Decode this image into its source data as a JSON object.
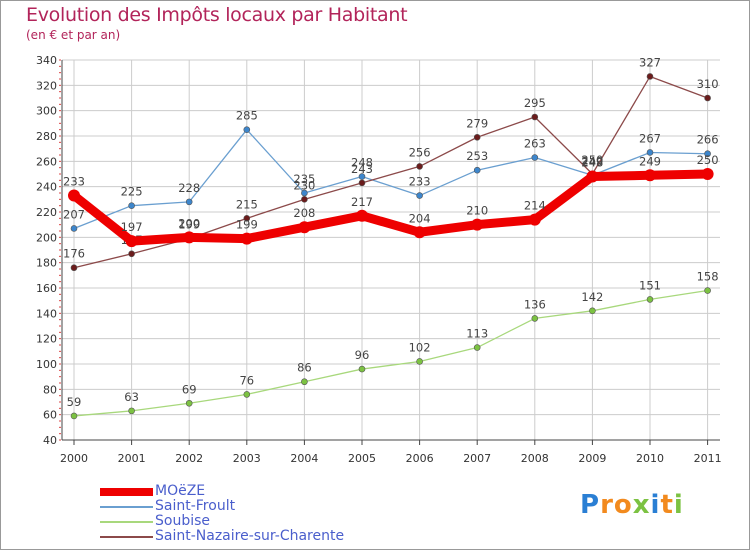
{
  "header": {
    "title": "Evolution des Impôts locaux par Habitant",
    "subtitle": "(en € et par an)"
  },
  "colors": {
    "title": "#b2245a",
    "grid": "#cccccc",
    "axis": "#444444",
    "tick_text": "#333333",
    "legend_text": "#4a5ecc",
    "logo_blue": "#2a7fd4",
    "logo_orange": "#f28a1e",
    "logo_green": "#7cc242"
  },
  "logo": {
    "letters": [
      "P",
      "r",
      "o",
      "x",
      "i",
      "t",
      "i"
    ],
    "letter_colors": [
      "#2a7fd4",
      "#f28a1e",
      "#f28a1e",
      "#7cc242",
      "#2a7fd4",
      "#f28a1e",
      "#7cc242"
    ]
  },
  "chart_data": {
    "type": "line",
    "title": "Evolution des Impôts locaux par Habitant",
    "subtitle": "(en € et par an)",
    "xlabel": "",
    "ylabel": "",
    "x": [
      "2000",
      "2001",
      "2002",
      "2003",
      "2004",
      "2005",
      "2006",
      "2007",
      "2008",
      "2009",
      "2010",
      "2011"
    ],
    "ylim": [
      40,
      340
    ],
    "yticks": [
      40,
      60,
      80,
      100,
      120,
      140,
      160,
      180,
      200,
      220,
      240,
      260,
      280,
      300,
      320,
      340
    ],
    "grid": true,
    "legend_position": "bottom-left",
    "series": [
      {
        "name": "Saint-Froult",
        "color": "#6a9fd0",
        "marker_color": "#3d86cc",
        "line_width": "thin",
        "values": [
          207,
          225,
          228,
          285,
          235,
          248,
          233,
          253,
          263,
          249,
          267,
          266
        ],
        "labels": [
          "207",
          "225",
          "228",
          "285",
          "235",
          "248",
          "233",
          "253",
          "263",
          "249",
          "267",
          "266"
        ]
      },
      {
        "name": "Soubise",
        "color": "#a8d87c",
        "marker_color": "#7cc242",
        "line_width": "thin",
        "values": [
          59,
          63,
          69,
          76,
          86,
          96,
          102,
          113,
          136,
          142,
          151,
          158
        ],
        "labels": [
          "59",
          "63",
          "69",
          "76",
          "86",
          "96",
          "102",
          "113",
          "136",
          "142",
          "151",
          "158"
        ]
      },
      {
        "name": "Saint-Nazaire-sur-Charente",
        "color": "#8c4a4a",
        "marker_color": "#6b1c1c",
        "line_width": "thin",
        "values": [
          176,
          187,
          199,
          215,
          230,
          243,
          256,
          279,
          295,
          250,
          327,
          310
        ],
        "labels": [
          "176",
          "187",
          "199",
          "215",
          "230",
          "243",
          "256",
          "279",
          "295",
          "250",
          "327",
          "310"
        ]
      },
      {
        "name": "MOëZE",
        "color": "#ee0000",
        "marker_color": "#ee0000",
        "line_width": "thick",
        "values": [
          233,
          197,
          200,
          199,
          208,
          217,
          204,
          210,
          214,
          248,
          249,
          250
        ],
        "labels": [
          "233",
          "197",
          "200",
          "199",
          "208",
          "217",
          "204",
          "210",
          "214",
          "248",
          "249",
          "250"
        ]
      }
    ],
    "legend": [
      "MOëZE",
      "Saint-Froult",
      "Soubise",
      "Saint-Nazaire-sur-Charente"
    ]
  }
}
